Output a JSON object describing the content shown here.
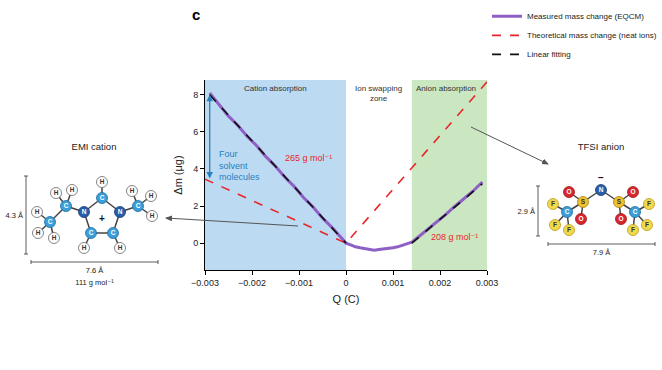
{
  "chart_data": {
    "type": "line",
    "panel": "c",
    "x_label": "Q (C)",
    "y_label": "Δm (μg)",
    "xlim": [
      -0.003,
      0.003
    ],
    "xticks": [
      {
        "value": -0.003,
        "label": "−0.003"
      },
      {
        "value": -0.002,
        "label": "−0.002"
      },
      {
        "value": -0.001,
        "label": "−0.001"
      },
      0,
      0.001,
      0.002,
      0.003
    ],
    "ylim": [
      -1.45,
      8.8
    ],
    "yticks": [
      0,
      2,
      4,
      6,
      8
    ],
    "grid": false,
    "legend": "top right",
    "zones": [
      {
        "label": [
          "Cation absorption"
        ],
        "x": [
          -0.003,
          0
        ],
        "color": "#bcdaf1"
      },
      {
        "label": [
          "Ion swapping",
          "zone"
        ],
        "x": [
          0,
          0.0014
        ]
      },
      {
        "label": [
          "Anion absorption"
        ],
        "x": [
          0.0014,
          0.003
        ],
        "color": "#cbe7c1"
      }
    ],
    "series": [
      {
        "name": "Measured mass change (EQCM)",
        "color": "#8e5fc4",
        "line_style": "solid",
        "x": [
          -0.0029,
          -0.0027,
          -0.0025,
          -0.0023,
          -0.0021,
          -0.0019,
          -0.0017,
          -0.0015,
          -0.0013,
          -0.0011,
          -0.0009,
          -0.0007,
          -0.0005,
          -0.0003,
          -0.0001,
          0,
          0.0001,
          0.0002,
          0.0003,
          0.0004,
          0.0005,
          0.0006,
          0.0007,
          0.0008,
          0.0009,
          0.001,
          0.0011,
          0.0012,
          0.0013,
          0.0014,
          0.0015,
          0.0017,
          0.0019,
          0.0021,
          0.0023,
          0.0025,
          0.0027,
          0.0029
        ],
        "values": [
          8.1,
          7.45,
          6.85,
          6.35,
          5.75,
          5.25,
          4.65,
          4.15,
          3.55,
          3.05,
          2.45,
          1.95,
          1.35,
          0.85,
          0.3,
          0.0,
          -0.1,
          -0.2,
          -0.25,
          -0.3,
          -0.35,
          -0.38,
          -0.35,
          -0.33,
          -0.3,
          -0.25,
          -0.2,
          -0.12,
          -0.05,
          0.05,
          0.25,
          0.65,
          1.1,
          1.5,
          1.95,
          2.35,
          2.8,
          3.3
        ]
      },
      {
        "name": "Theoretical mass change (neat ions)",
        "color": "#e8262a",
        "line_style": "dash",
        "x": [
          -0.003,
          0,
          0.003
        ],
        "values": [
          3.45,
          0,
          8.7
        ]
      },
      {
        "name": "Linear fitting",
        "color": "#111111",
        "line_style": "dash",
        "x": [
          -0.0029,
          0,
          0.0007,
          0.0014,
          0.0029
        ],
        "values": [
          8.0,
          0,
          null,
          0,
          3.2
        ]
      }
    ],
    "annotations": [
      {
        "text": [
          "Four",
          "solvent",
          "molecules"
        ],
        "x": -0.0028,
        "y": 4.2,
        "color": "#2a7fc1",
        "arrow_x": -0.0029,
        "arrow_y": [
          3.4,
          8.0
        ]
      },
      {
        "text": "265 g mol⁻¹",
        "x": -0.0008,
        "y": 4.6,
        "color": "#e8262a"
      },
      {
        "text": "208 g mol⁻¹",
        "x": 0.0023,
        "y": 0.35,
        "color": "#e8262a"
      }
    ]
  },
  "molecules": [
    {
      "name": "EMI cation",
      "atoms": [
        "N",
        "C",
        "N",
        "C",
        "C",
        "H",
        "H",
        "H",
        "C",
        "H",
        "H",
        "C",
        "H",
        "H",
        "H",
        "C",
        "H",
        "H",
        "H"
      ],
      "charge": "+",
      "height": "4.3 Å",
      "width": "7.6 Å",
      "mass": "111 g mol⁻¹"
    },
    {
      "name": "TFSI anion",
      "atoms": [
        "N",
        "S",
        "S",
        "O",
        "O",
        "O",
        "O",
        "C",
        "C",
        "F",
        "F",
        "F",
        "F",
        "F",
        "F"
      ],
      "charge": "−",
      "height": "2.9 Å",
      "width": "7.9 Å"
    }
  ]
}
